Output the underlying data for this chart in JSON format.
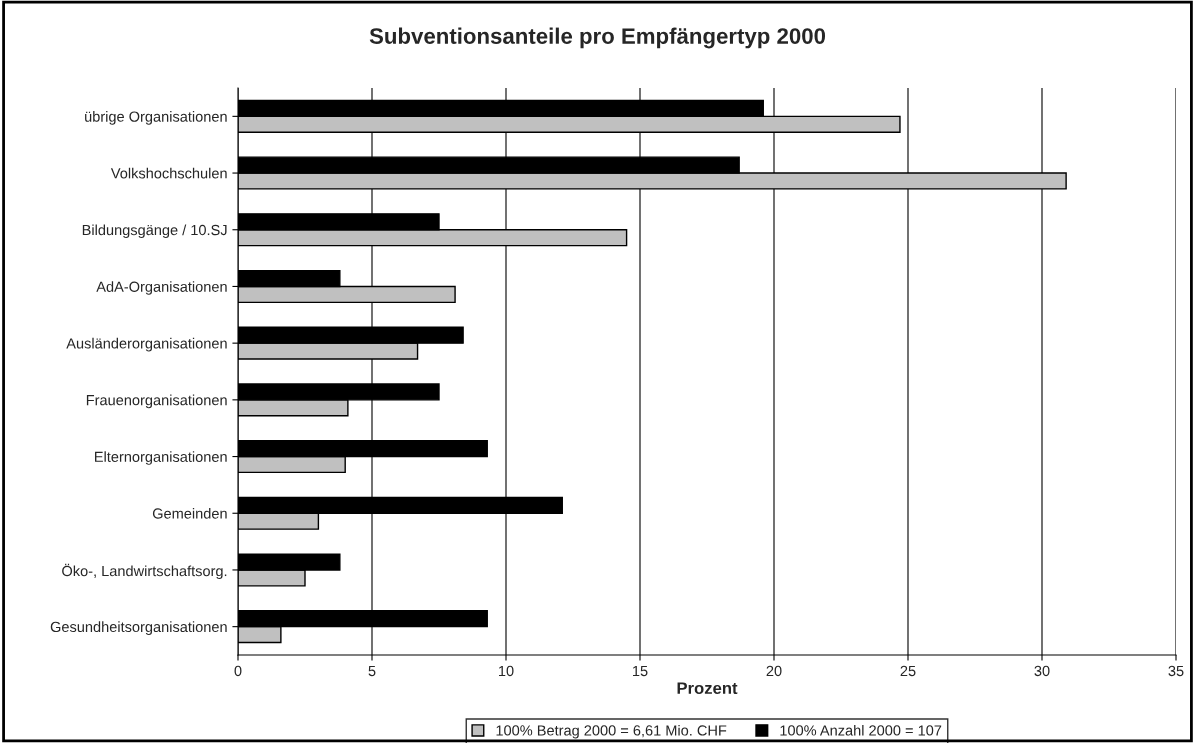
{
  "chart_data": {
    "type": "bar",
    "orientation": "horizontal",
    "title": "Subventionsanteile pro Empfängertyp 2000",
    "xlabel": "Prozent",
    "categories": [
      "übrige Organisationen",
      "Volkshochschulen",
      "Bildungsgänge / 10.SJ",
      "AdA-Organisationen",
      "Ausländerorganisationen",
      "Frauenorganisationen",
      "Elternorganisationen",
      "Gemeinden",
      "Öko-, Landwirtschaftsorg.",
      "Gesundheitsorganisationen"
    ],
    "series": [
      {
        "name": "100% Betrag 2000 = 6,61 Mio. CHF",
        "color": "#c0c0c0",
        "values": [
          24.7,
          30.9,
          14.5,
          8.1,
          6.7,
          4.1,
          4.0,
          3.0,
          2.5,
          1.6
        ]
      },
      {
        "name": "100% Anzahl 2000 = 107",
        "color": "#000000",
        "values": [
          19.6,
          18.7,
          7.5,
          3.8,
          8.4,
          7.5,
          9.3,
          12.1,
          3.8,
          9.3
        ]
      }
    ],
    "xlim": [
      0,
      35
    ],
    "xticks": [
      0,
      5,
      10,
      15,
      20,
      25,
      30,
      35
    ],
    "grid": "x",
    "legend": "bottom"
  }
}
